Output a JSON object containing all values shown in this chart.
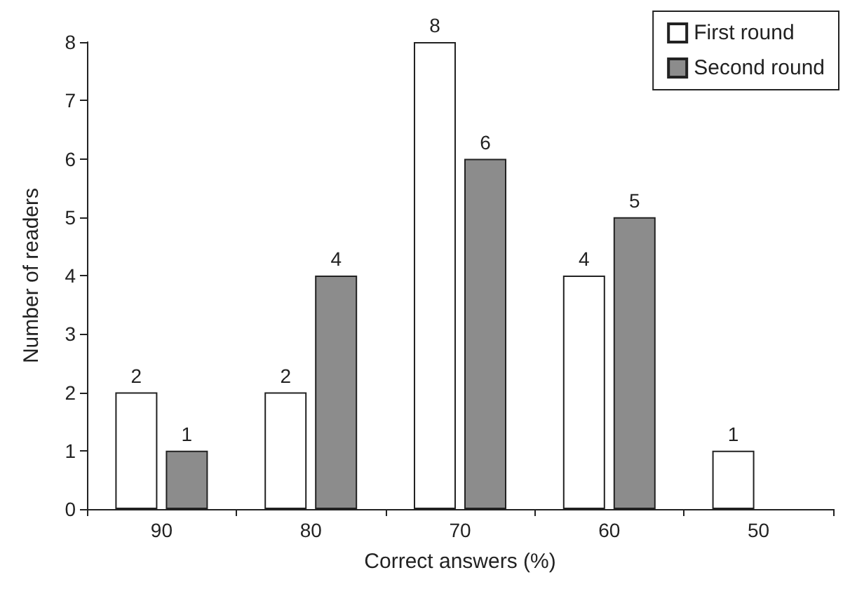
{
  "chart_data": {
    "type": "bar",
    "xlabel": "Correct answers (%)",
    "ylabel": "Number of readers",
    "categories": [
      "90",
      "80",
      "70",
      "60",
      "50"
    ],
    "series": [
      {
        "name": "First round",
        "color": "#ffffff",
        "values": [
          2,
          2,
          8,
          4,
          1
        ]
      },
      {
        "name": "Second round",
        "color": "#8c8c8c",
        "values": [
          1,
          4,
          6,
          5,
          null
        ]
      }
    ],
    "ylim": [
      0,
      8
    ],
    "yticks": [
      0,
      1,
      2,
      3,
      4,
      5,
      6,
      7,
      8
    ],
    "grid": false,
    "legend": "top right",
    "data_labels": true
  }
}
